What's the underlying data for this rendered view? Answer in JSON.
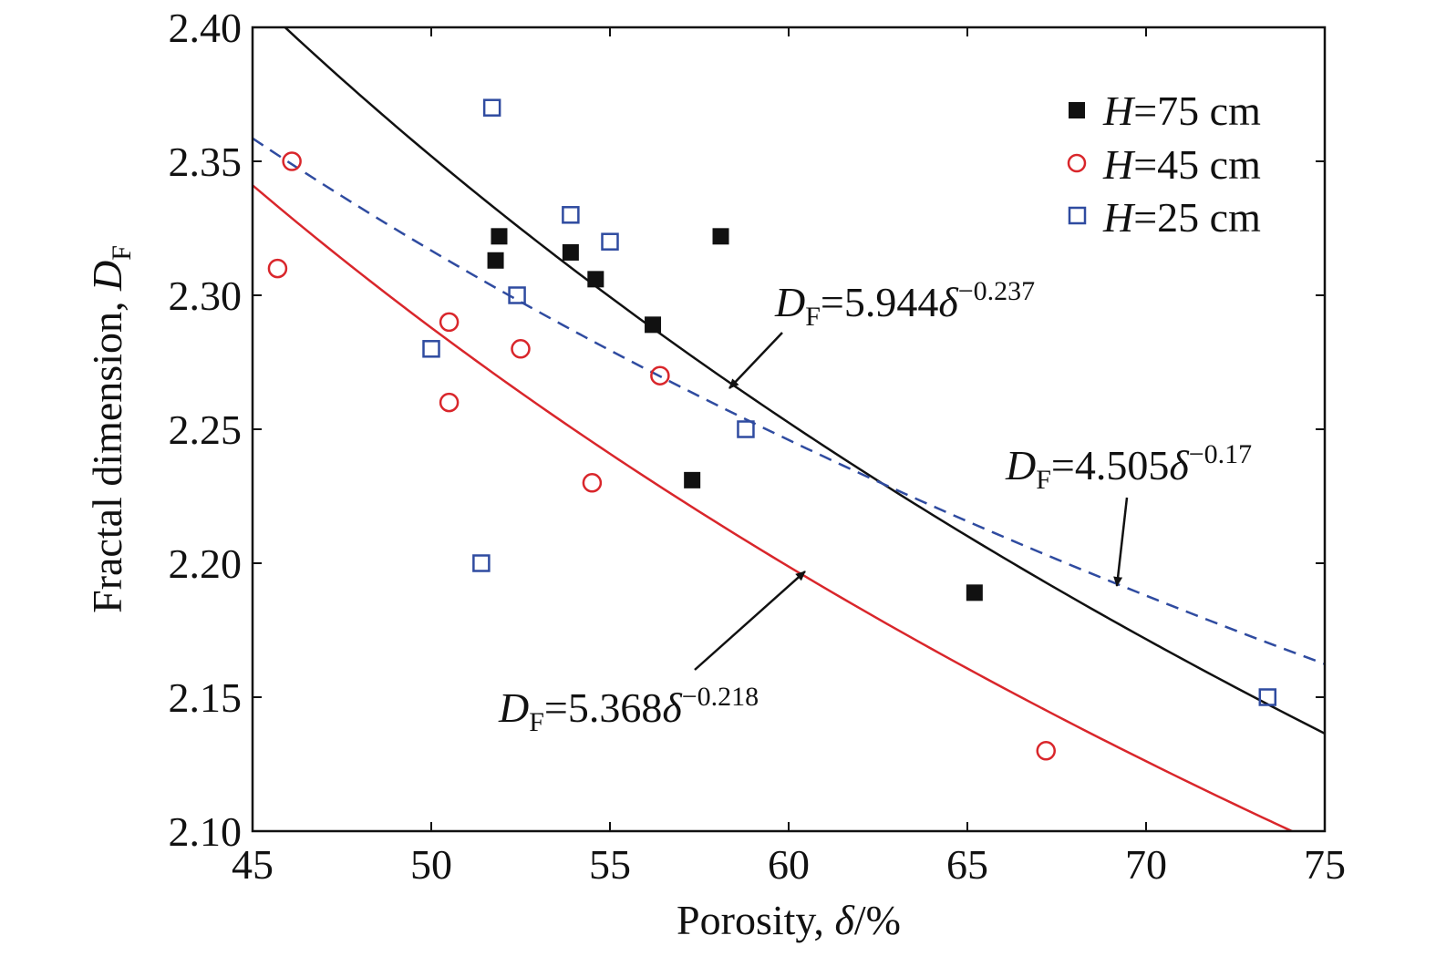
{
  "chart_data": {
    "type": "scatter",
    "xlabel": {
      "prefix": "Porosity, ",
      "symbol": "δ",
      "suffix": "/%"
    },
    "ylabel": {
      "prefix": "Fractal dimension, ",
      "symbol": "D",
      "subscript": "F"
    },
    "xlim": [
      45,
      75
    ],
    "ylim": [
      2.1,
      2.4
    ],
    "xticks": [
      "45",
      "50",
      "55",
      "60",
      "65",
      "70",
      "75"
    ],
    "yticks": [
      "2.10",
      "2.15",
      "2.20",
      "2.25",
      "2.30",
      "2.35",
      "2.40"
    ],
    "legend_position": "top-right",
    "grid": false,
    "colors": {
      "h75": "#111111",
      "h45": "#d9262b",
      "h25": "#2f4ba0"
    },
    "series": [
      {
        "name": "H=75 cm",
        "name_italic": "H",
        "name_rest": "=75 cm",
        "marker": "filled-square",
        "color": "#111111",
        "x": [
          51.8,
          51.9,
          53.9,
          54.6,
          56.2,
          57.3,
          58.1,
          65.2
        ],
        "y": [
          2.313,
          2.322,
          2.316,
          2.306,
          2.289,
          2.231,
          2.322,
          2.189
        ]
      },
      {
        "name": "H=45 cm",
        "name_italic": "H",
        "name_rest": "=45 cm",
        "marker": "open-circle",
        "color": "#d9262b",
        "x": [
          45.7,
          46.1,
          50.5,
          50.5,
          52.5,
          54.5,
          56.4,
          67.2
        ],
        "y": [
          2.31,
          2.35,
          2.29,
          2.26,
          2.28,
          2.23,
          2.27,
          2.13
        ]
      },
      {
        "name": "H=25 cm",
        "name_italic": "H",
        "name_rest": "=25 cm",
        "marker": "open-square",
        "color": "#2f4ba0",
        "x": [
          50.0,
          51.4,
          51.7,
          52.4,
          53.9,
          55.0,
          58.8,
          73.4
        ],
        "y": [
          2.28,
          2.2,
          2.37,
          2.3,
          2.33,
          2.32,
          2.25,
          2.15
        ]
      }
    ],
    "fits": [
      {
        "series": "H=75 cm",
        "a": 5.944,
        "b": -0.237,
        "style": "solid",
        "color": "#111111",
        "label_lhs": "D",
        "label_sub": "F",
        "label_mid": "=5.944",
        "label_var": "δ",
        "label_exp": "−0.237"
      },
      {
        "series": "H=45 cm",
        "a": 5.368,
        "b": -0.218,
        "style": "solid",
        "color": "#d9262b",
        "label_lhs": "D",
        "label_sub": "F",
        "label_mid": "=5.368",
        "label_var": "δ",
        "label_exp": "−0.218"
      },
      {
        "series": "H=25 cm",
        "a": 4.505,
        "b": -0.17,
        "style": "dashed",
        "color": "#2f4ba0",
        "label_lhs": "D",
        "label_sub": "F",
        "label_mid": "=4.505",
        "label_var": "δ",
        "label_exp": "−0.17"
      }
    ]
  }
}
